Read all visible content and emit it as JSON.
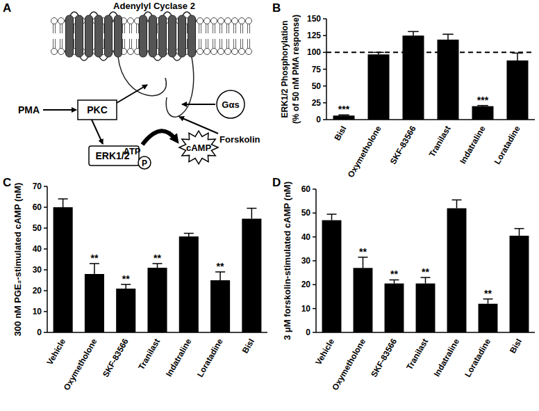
{
  "diagram": {
    "panel": "A",
    "title": "Adenylyl Cyclase 2",
    "labels": {
      "pma": "PMA",
      "pkc": "PKC",
      "erk": "ERK1/2",
      "phospho": "P",
      "gas": "Gαs",
      "forskolin": "Forskolin",
      "atp": "ATP",
      "camp": "cAMP"
    }
  },
  "chart_data": [
    {
      "type": "bar",
      "panel": "B",
      "y_label": [
        "ERK1/2 Phosphorylation",
        "(% of 50 nM PMA response)"
      ],
      "categories": [
        "BisI",
        "Oxymetholone",
        "SKF-83566",
        "Tranilast",
        "Indatraline",
        "Loratadine"
      ],
      "values": [
        6,
        97,
        125,
        119,
        20,
        88
      ],
      "errors": [
        1,
        3,
        6,
        8,
        1,
        11
      ],
      "annotations": [
        "***",
        null,
        null,
        null,
        "***",
        null
      ],
      "color": "#000000",
      "ylim": [
        0,
        150
      ],
      "yticks": [
        0,
        25,
        50,
        75,
        100,
        125,
        150
      ],
      "reference_line": 100
    },
    {
      "type": "bar",
      "panel": "C",
      "y_label": [
        "300 nM PGE₂-stimulated cAMP (nM)"
      ],
      "categories": [
        "Vehicle",
        "Oxymetholone",
        "SKF-83566",
        "Tranilast",
        "Indatraline",
        "Loratadine",
        "BisI"
      ],
      "values": [
        60,
        28,
        21,
        31,
        46,
        25,
        54.5
      ],
      "errors": [
        4,
        5,
        2,
        2,
        1.5,
        4,
        5
      ],
      "annotations": [
        null,
        "**",
        "**",
        "**",
        null,
        "**",
        null
      ],
      "color": "#000000",
      "ylim": [
        0,
        70
      ],
      "yticks": [
        0,
        10,
        20,
        30,
        40,
        50,
        60,
        70
      ]
    },
    {
      "type": "bar",
      "panel": "D",
      "y_label": [
        "3 μM forskolin-stimulated cAMP (nM)"
      ],
      "categories": [
        "Vehicle",
        "Oxymetholone",
        "SKF-83566",
        "Tranilast",
        "Indatraline",
        "Loratadine",
        "BisI"
      ],
      "values": [
        47,
        27,
        20.5,
        20.5,
        52,
        12,
        40.5
      ],
      "errors": [
        2.5,
        4.5,
        1.5,
        2.5,
        3.5,
        2,
        3
      ],
      "annotations": [
        null,
        "**",
        "**",
        "**",
        null,
        "**",
        null
      ],
      "color": "#000000",
      "ylim": [
        0,
        60
      ],
      "yticks": [
        0,
        10,
        20,
        30,
        40,
        50,
        60
      ]
    }
  ]
}
